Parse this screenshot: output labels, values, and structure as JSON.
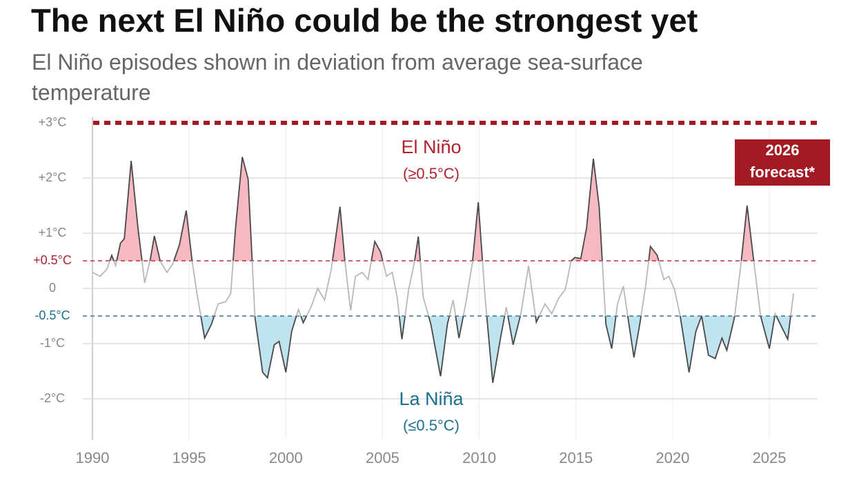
{
  "chart_data": {
    "type": "line",
    "title": "The next El Niño could be the strongest yet",
    "subtitle": "El Niño episodes shown in deviation from average sea-surface temperature",
    "x": [
      1990.0,
      1990.4,
      1990.75,
      1991.0,
      1991.2,
      1991.45,
      1991.65,
      1992.0,
      1992.35,
      1992.7,
      1993.0,
      1993.2,
      1993.5,
      1993.85,
      1994.15,
      1994.5,
      1994.85,
      1995.15,
      1995.4,
      1995.8,
      1996.15,
      1996.5,
      1996.9,
      1997.15,
      1997.4,
      1997.75,
      1998.05,
      1998.4,
      1998.8,
      1999.05,
      1999.4,
      1999.65,
      2000.0,
      2000.3,
      2000.65,
      2000.9,
      2001.3,
      2001.65,
      2002.0,
      2002.35,
      2002.8,
      2003.05,
      2003.35,
      2003.6,
      2003.95,
      2004.25,
      2004.6,
      2004.9,
      2005.2,
      2005.5,
      2005.75,
      2006.0,
      2006.35,
      2006.65,
      2006.85,
      2007.1,
      2007.5,
      2008.0,
      2008.35,
      2008.65,
      2008.95,
      2009.3,
      2009.65,
      2009.95,
      2010.3,
      2010.7,
      2011.1,
      2011.4,
      2011.75,
      2012.15,
      2012.55,
      2012.95,
      2013.4,
      2013.75,
      2014.1,
      2014.45,
      2014.75,
      2014.95,
      2015.25,
      2015.55,
      2015.9,
      2016.2,
      2016.55,
      2016.85,
      2017.15,
      2017.45,
      2017.85,
      2018.0,
      2018.3,
      2018.6,
      2018.85,
      2019.2,
      2019.55,
      2019.8,
      2020.1,
      2020.4,
      2020.85,
      2021.2,
      2021.5,
      2021.85,
      2022.2,
      2022.55,
      2022.8,
      2023.2,
      2023.55,
      2023.85,
      2024.2,
      2024.55,
      2025.0,
      2025.3,
      2025.75,
      2025.95,
      2026.25
    ],
    "values": [
      0.29,
      0.22,
      0.35,
      0.6,
      0.41,
      0.82,
      0.9,
      2.31,
      1.1,
      0.1,
      0.54,
      0.95,
      0.5,
      0.29,
      0.44,
      0.79,
      1.41,
      0.5,
      -0.09,
      -0.9,
      -0.65,
      -0.28,
      -0.24,
      -0.09,
      1.1,
      2.38,
      1.98,
      -0.52,
      -1.52,
      -1.62,
      -1.02,
      -0.96,
      -1.52,
      -0.78,
      -0.38,
      -0.62,
      -0.34,
      0.0,
      -0.21,
      0.35,
      1.48,
      0.5,
      -0.4,
      0.22,
      0.29,
      0.16,
      0.85,
      0.66,
      0.22,
      0.29,
      -0.15,
      -0.92,
      -0.02,
      0.48,
      0.94,
      -0.15,
      -0.65,
      -1.59,
      -0.65,
      -0.21,
      -0.9,
      -0.28,
      0.48,
      1.56,
      -0.15,
      -1.71,
      -0.9,
      -0.34,
      -1.02,
      -0.46,
      0.41,
      -0.61,
      -0.28,
      -0.46,
      -0.18,
      -0.02,
      0.5,
      0.56,
      0.54,
      1.1,
      2.35,
      1.48,
      -0.65,
      -1.09,
      -0.28,
      0.04,
      -0.9,
      -1.25,
      -0.65,
      0.04,
      0.76,
      0.6,
      0.16,
      0.22,
      -0.02,
      -0.52,
      -1.52,
      -0.78,
      -0.5,
      -1.21,
      -1.27,
      -0.9,
      -1.12,
      -0.52,
      0.5,
      1.5,
      0.48,
      -0.5,
      -1.09,
      -0.46,
      -0.78,
      -0.92,
      -0.09
    ],
    "line_color": "#4a4a4a",
    "inner_line_color": "#b8b8b8",
    "xlim": [
      1989.5,
      2027.5
    ],
    "xticks": [
      1990,
      1995,
      2000,
      2005,
      2010,
      2015,
      2020,
      2025
    ],
    "ylim": [
      -2.75,
      3.1
    ],
    "yticks": [
      {
        "value": 3,
        "label": "+3°C"
      },
      {
        "value": 2,
        "label": "+2°C"
      },
      {
        "value": 1,
        "label": "+1°C"
      },
      {
        "value": 0.5,
        "label": "+0.5°C"
      },
      0,
      {
        "value": -0.5,
        "label": "-0.5°C"
      },
      {
        "value": -1,
        "label": "-1°C"
      },
      {
        "value": -2,
        "label": "-2°C"
      }
    ],
    "grid": true,
    "thresholds": [
      {
        "value": 0.5,
        "color": "#b0232e",
        "fill": "#f7b9c1",
        "label": "El Niño",
        "note": "(≥0.5°C)"
      },
      {
        "value": -0.5,
        "color": "#1d6f8e",
        "fill": "#bfe4f0",
        "label": "La Niña",
        "note": "(≤0.5°C)"
      }
    ],
    "forecast": {
      "value": 3,
      "color": "#a31a24",
      "label": [
        "2026",
        "forecast*"
      ]
    }
  }
}
